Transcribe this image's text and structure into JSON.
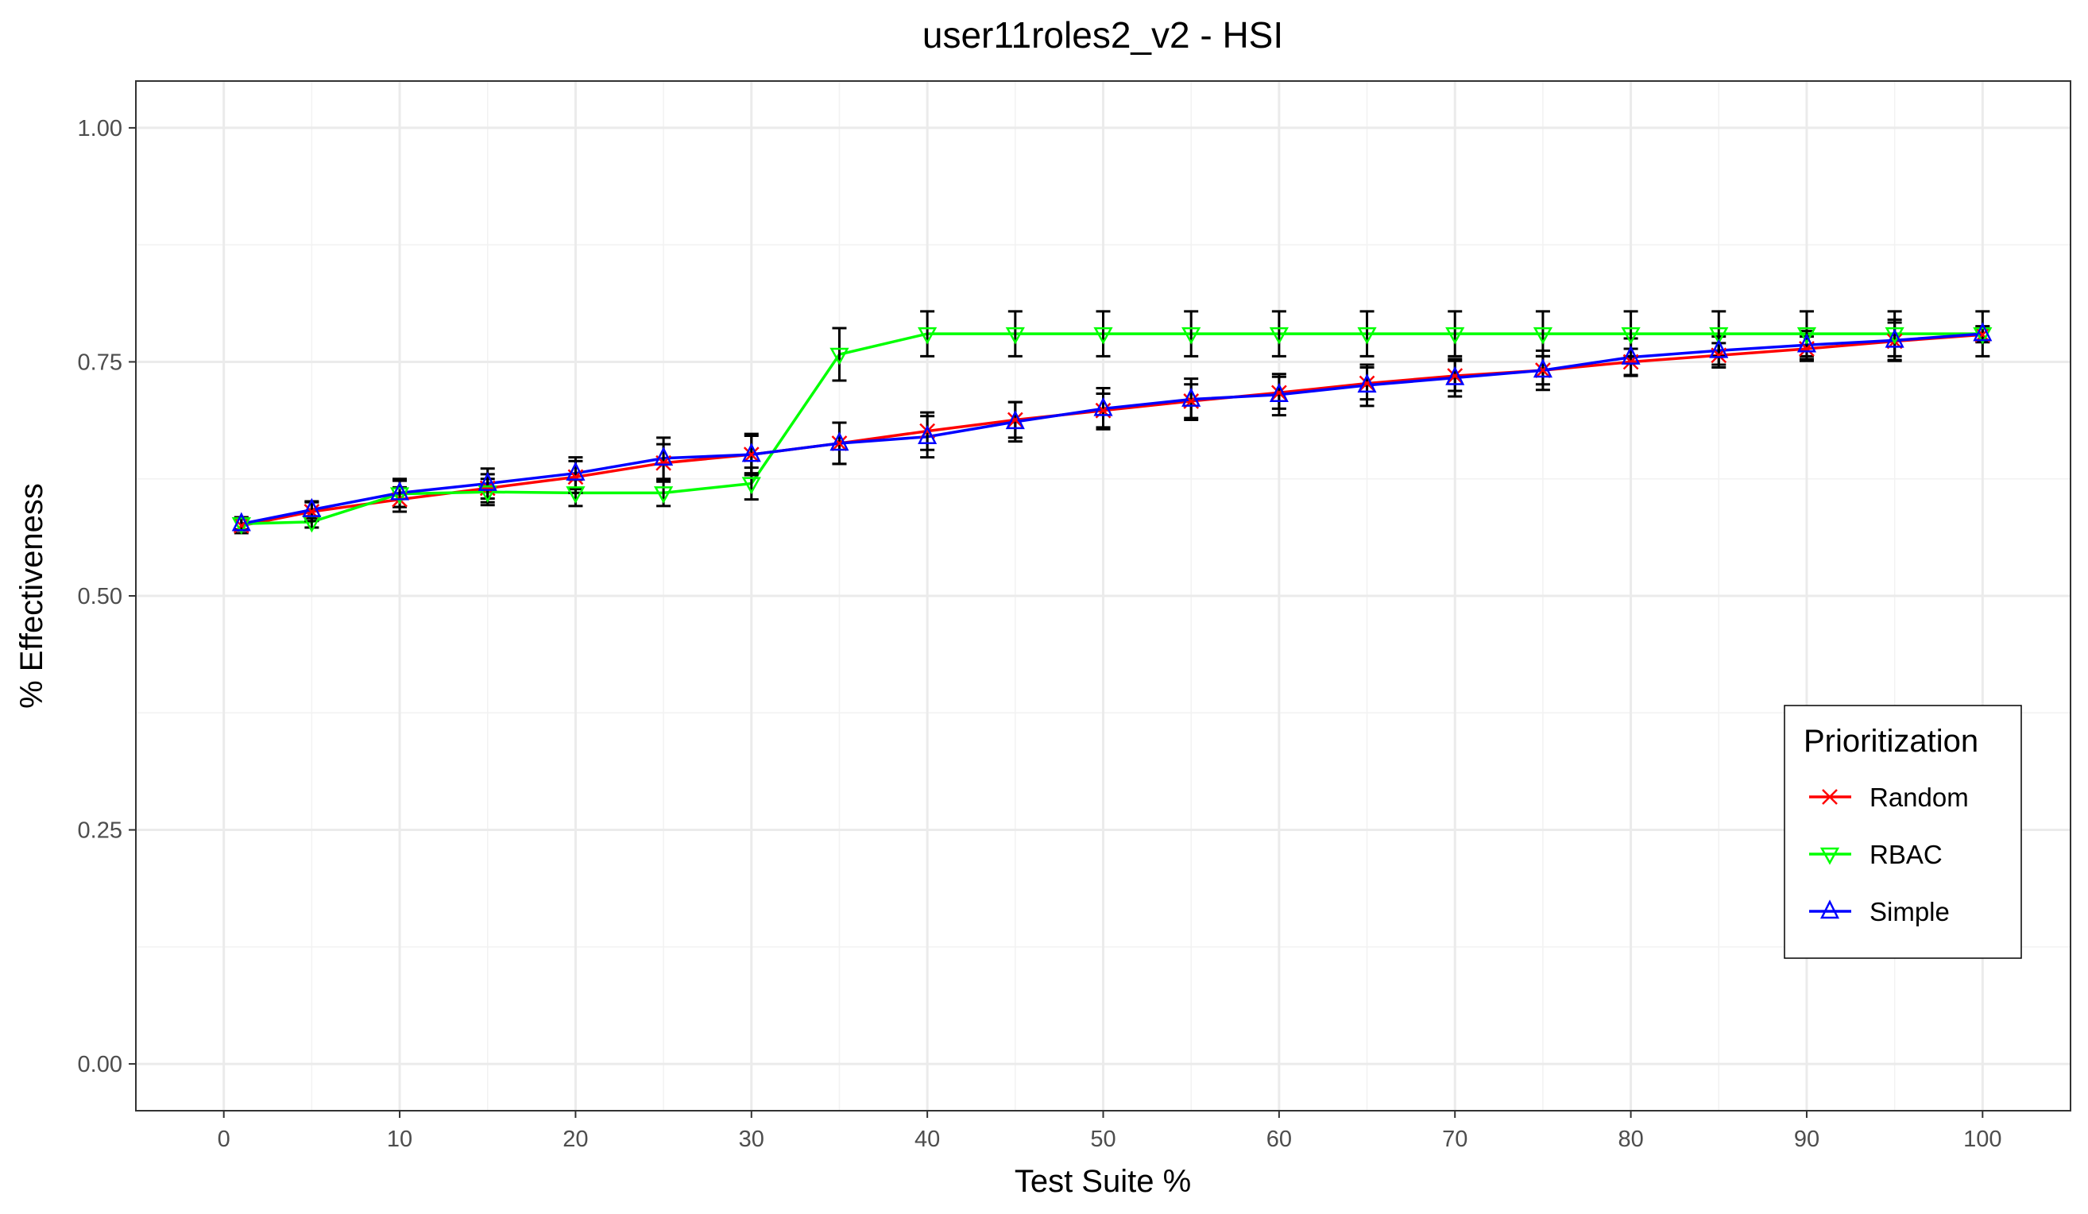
{
  "chart_data": {
    "type": "line",
    "title": "user11roles2_v2 - HSI",
    "xlabel": "Test Suite %",
    "ylabel": "% Effectiveness",
    "xlim": [
      -5,
      105
    ],
    "ylim": [
      -0.05,
      1.05
    ],
    "x_ticks": [
      0,
      10,
      20,
      30,
      40,
      50,
      60,
      70,
      80,
      90,
      100
    ],
    "x_tick_labels": [
      "0",
      "10",
      "20",
      "30",
      "40",
      "50",
      "60",
      "70",
      "80",
      "90",
      "100"
    ],
    "y_ticks": [
      0,
      0.25,
      0.5,
      0.75,
      1
    ],
    "y_tick_labels": [
      "0.00",
      "0.25",
      "0.50",
      "0.75",
      "1.00"
    ],
    "grid": true,
    "legend": {
      "title": "Prioritization",
      "position": "right",
      "entries": [
        "Random",
        "RBAC",
        "Simple"
      ]
    },
    "x": [
      1,
      5,
      10,
      15,
      20,
      25,
      30,
      35,
      40,
      45,
      50,
      55,
      60,
      65,
      70,
      75,
      80,
      85,
      90,
      95,
      100
    ],
    "series": [
      {
        "name": "Random",
        "color": "#ff0000",
        "marker": "cross",
        "values": [
          0.575,
          0.59,
          0.603,
          0.615,
          0.627,
          0.642,
          0.651,
          0.663,
          0.676,
          0.688,
          0.698,
          0.708,
          0.717,
          0.727,
          0.735,
          0.741,
          0.75,
          0.757,
          0.764,
          0.772,
          0.779
        ],
        "errors": [
          0.008,
          0.01,
          0.013,
          0.015,
          0.017,
          0.02,
          0.02,
          0.022,
          0.02,
          0.019,
          0.018,
          0.018,
          0.017,
          0.017,
          0.016,
          0.015,
          0.014,
          0.013,
          0.013,
          0.02,
          0.008
        ]
      },
      {
        "name": "RBAC",
        "color": "#00ff00",
        "marker": "triangle-down",
        "values": [
          0.577,
          0.579,
          0.609,
          0.611,
          0.61,
          0.61,
          0.62,
          0.758,
          0.78,
          0.78,
          0.78,
          0.78,
          0.78,
          0.78,
          0.78,
          0.78,
          0.78,
          0.78,
          0.78,
          0.78,
          0.78
        ],
        "errors": [
          0.006,
          0.006,
          0.014,
          0.014,
          0.014,
          0.014,
          0.017,
          0.028,
          0.024,
          0.024,
          0.024,
          0.024,
          0.024,
          0.024,
          0.024,
          0.024,
          0.024,
          0.024,
          0.024,
          0.024,
          0.024
        ]
      },
      {
        "name": "Simple",
        "color": "#0000ff",
        "marker": "triangle-up",
        "values": [
          0.577,
          0.592,
          0.61,
          0.62,
          0.631,
          0.647,
          0.651,
          0.663,
          0.67,
          0.686,
          0.7,
          0.71,
          0.715,
          0.725,
          0.733,
          0.741,
          0.755,
          0.762,
          0.768,
          0.773,
          0.78
        ],
        "errors": [
          0.007,
          0.009,
          0.015,
          0.016,
          0.017,
          0.022,
          0.022,
          0.022,
          0.022,
          0.021,
          0.022,
          0.022,
          0.022,
          0.022,
          0.02,
          0.021,
          0.02,
          0.015,
          0.015,
          0.022,
          0.008
        ]
      }
    ]
  }
}
